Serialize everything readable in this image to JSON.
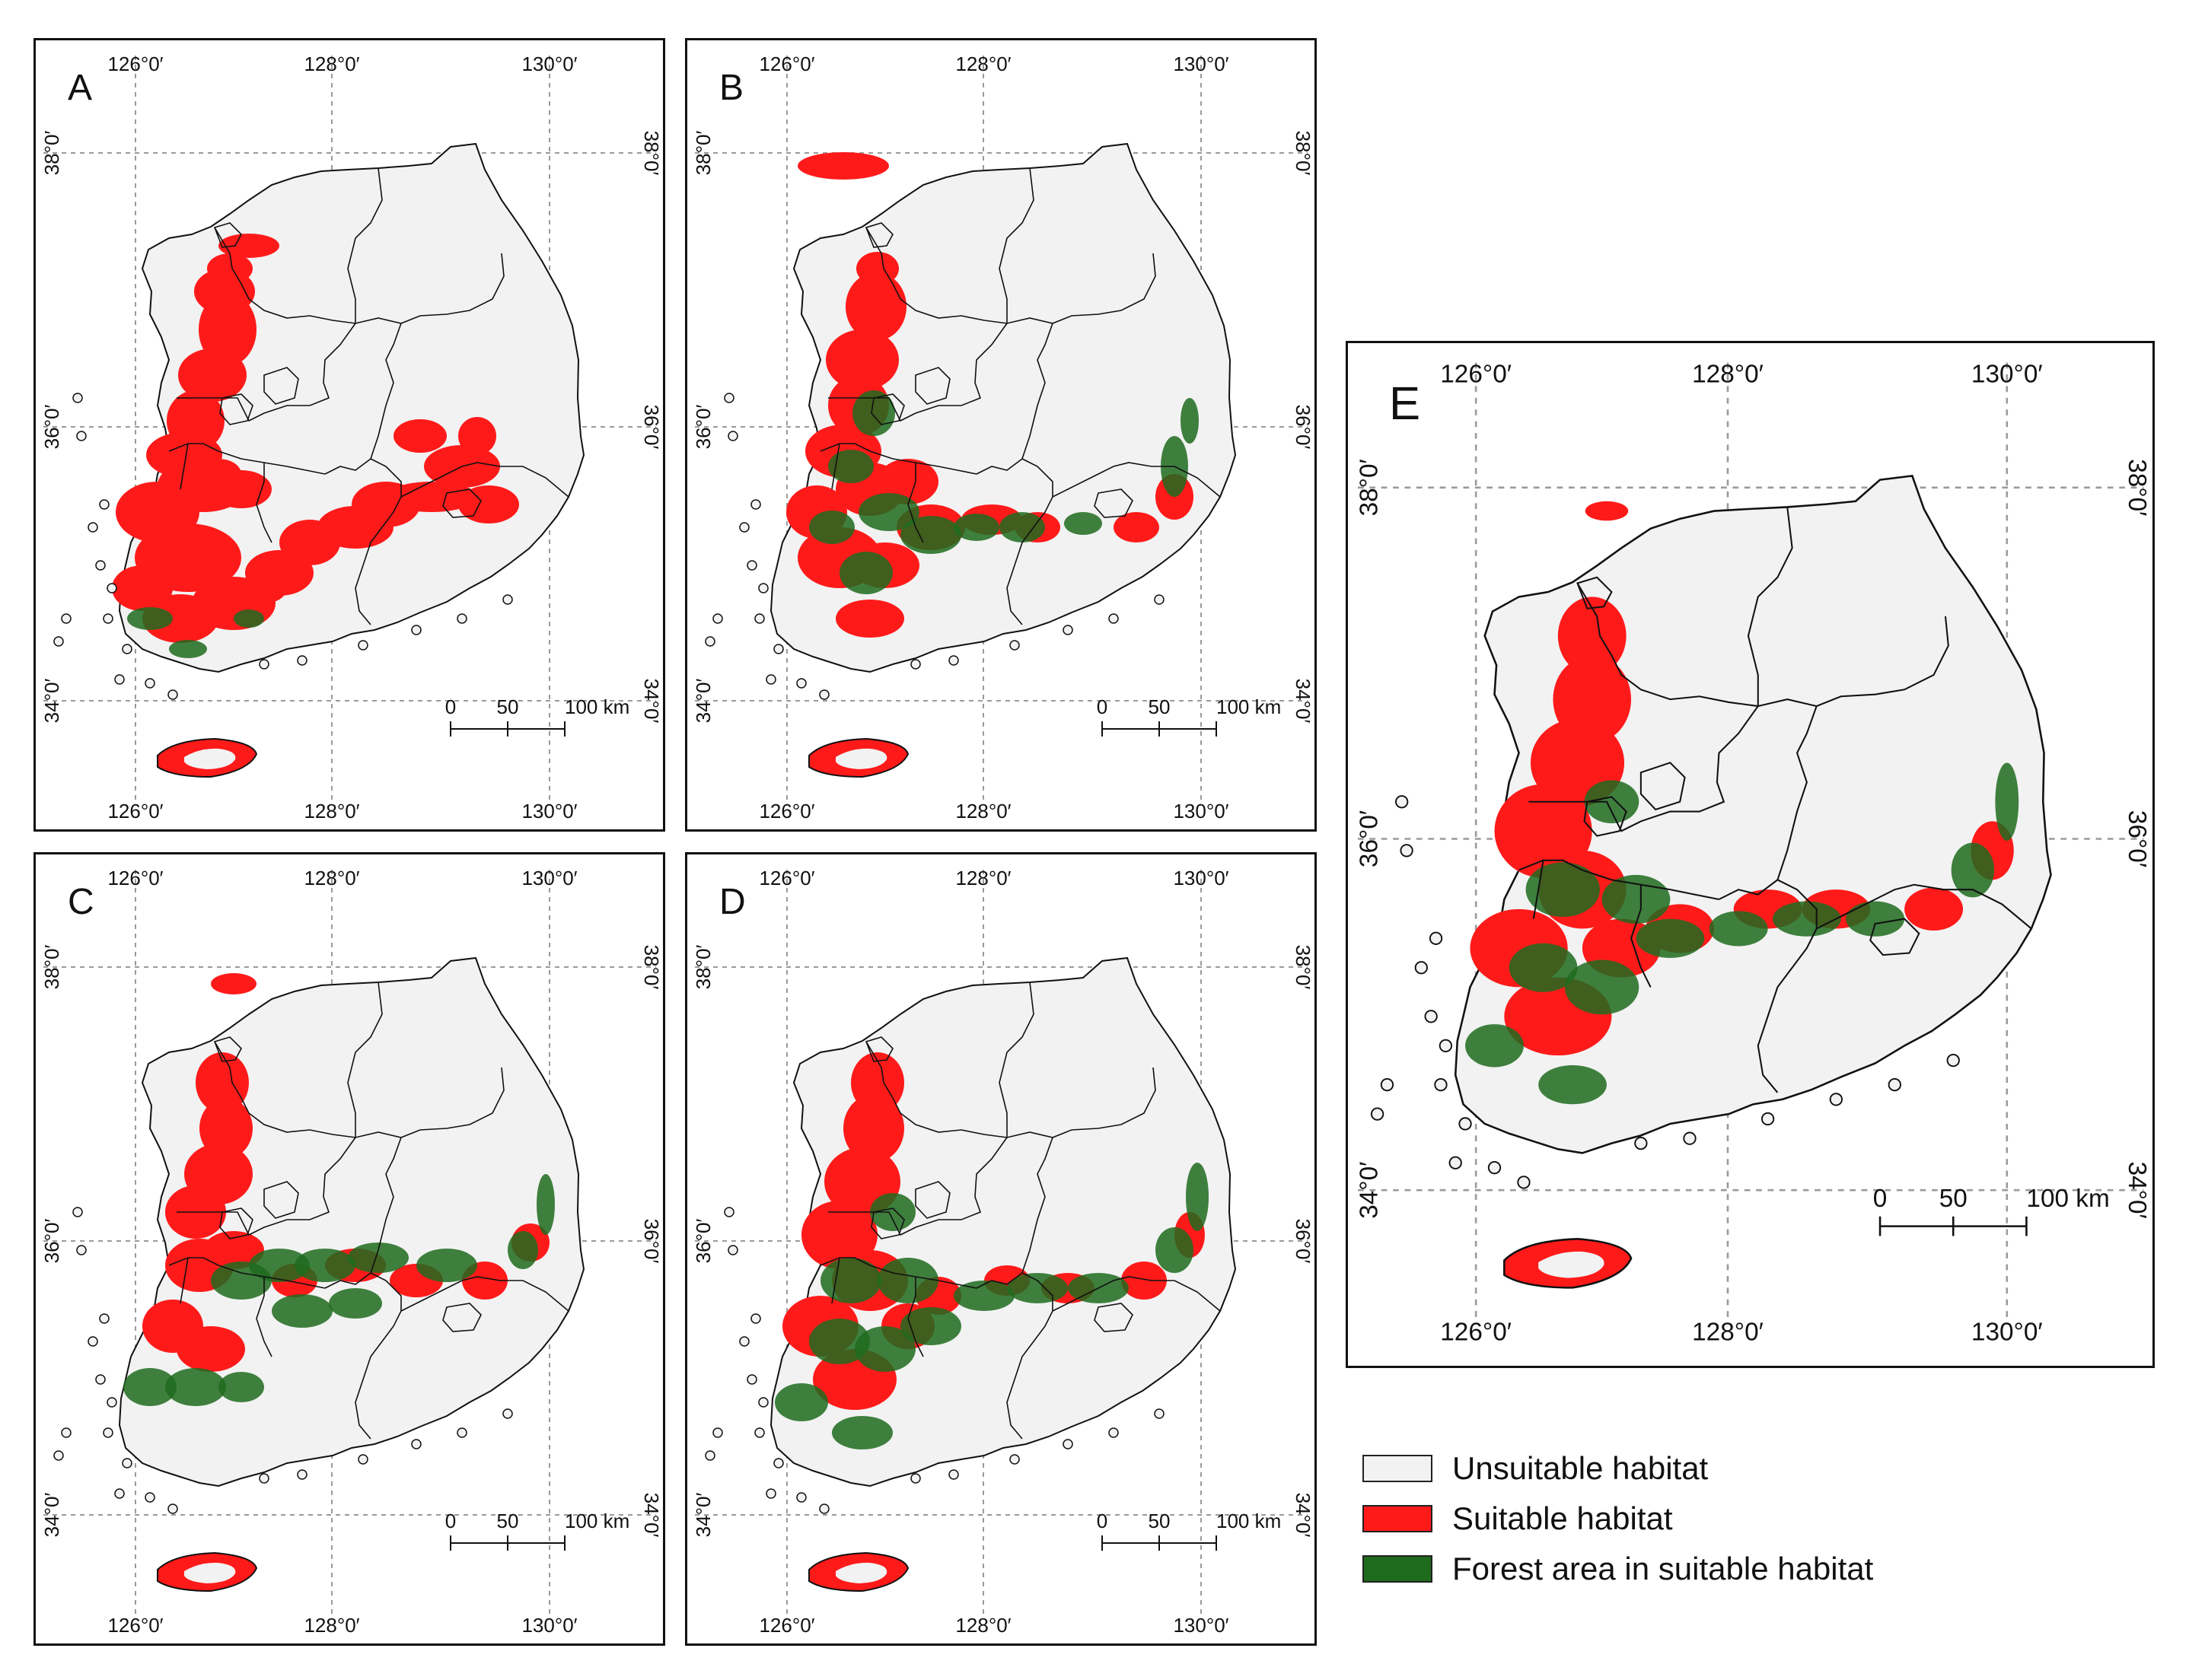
{
  "panels": [
    {
      "id": "A",
      "label": "A",
      "scenario": "a"
    },
    {
      "id": "B",
      "label": "B",
      "scenario": "b"
    },
    {
      "id": "C",
      "label": "C",
      "scenario": "c"
    },
    {
      "id": "D",
      "label": "D",
      "scenario": "d"
    },
    {
      "id": "E",
      "label": "E",
      "scenario": "e"
    }
  ],
  "axes": {
    "lon_ticks": [
      "126°0′",
      "128°0′",
      "130°0′"
    ],
    "lat_ticks": [
      "38°0′",
      "36°0′",
      "34°0′"
    ]
  },
  "scale_bar": {
    "labels": [
      "0",
      "50",
      "100 km"
    ]
  },
  "legend": [
    {
      "label": "Unsuitable habitat",
      "color": "#f2f2f2"
    },
    {
      "label": "Suitable habitat",
      "color": "#ff1a1a"
    },
    {
      "label": "Forest area in suitable habitat",
      "color": "#1e6b1e"
    }
  ],
  "colors": {
    "land": "#f2f2f2",
    "suitable": "#ff1a1a",
    "forest": "#1e6b1e",
    "border": "#111111",
    "grid": "#9a9a9a"
  }
}
